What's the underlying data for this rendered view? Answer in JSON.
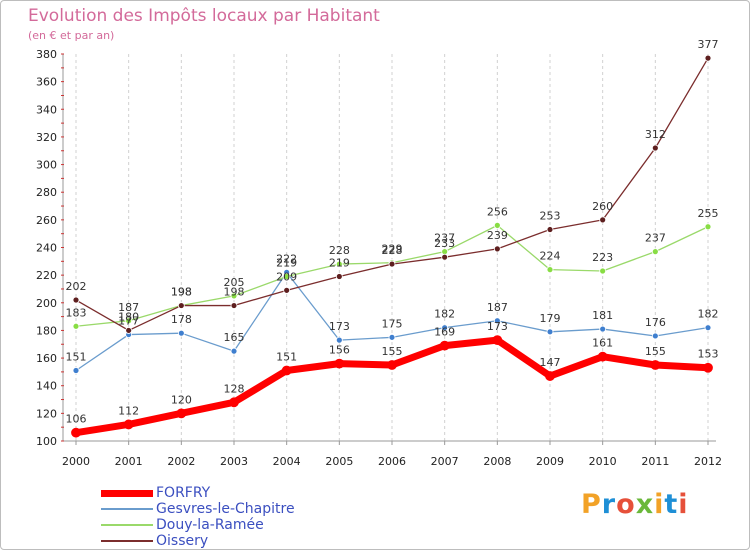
{
  "title": "Evolution des Impôts locaux par Habitant",
  "subtitle": "(en € et par an)",
  "logo": {
    "text": "Proxiti",
    "colors": [
      "#f2a227",
      "#1e8fd6",
      "#e6503a",
      "#6ab83a",
      "#f2a227",
      "#1e8fd6",
      "#e6503a"
    ]
  },
  "chart_data": {
    "type": "line",
    "title": "Evolution des Impôts locaux par Habitant",
    "subtitle": "(en € et par an)",
    "xlabel": "",
    "ylabel": "",
    "ylim": [
      100,
      380
    ],
    "yticks": [
      100,
      120,
      140,
      160,
      180,
      200,
      220,
      240,
      260,
      280,
      300,
      320,
      340,
      360,
      380
    ],
    "grid": "vertical dashed",
    "x": [
      "2000",
      "2001",
      "2002",
      "2003",
      "2004",
      "2005",
      "2006",
      "2007",
      "2008",
      "2009",
      "2010",
      "2011",
      "2012"
    ],
    "legend_position": "bottom-left",
    "series": [
      {
        "name": "FORFRY",
        "color": "#ff0000",
        "marker": "#ff0000",
        "width": 7,
        "values": [
          106,
          112,
          120,
          128,
          151,
          156,
          155,
          169,
          173,
          147,
          161,
          155,
          153
        ]
      },
      {
        "name": "Gesvres-le-Chapitre",
        "color": "#6a9ccd",
        "marker": "#3f7fcf",
        "width": 1.3,
        "values": [
          151,
          177,
          178,
          165,
          222,
          173,
          175,
          182,
          187,
          179,
          181,
          176,
          182
        ]
      },
      {
        "name": "Douy-la-Ramée",
        "color": "#9ad96a",
        "marker": "#88dd44",
        "width": 1.3,
        "values": [
          183,
          187,
          198,
          205,
          219,
          228,
          229,
          237,
          256,
          224,
          223,
          237,
          255
        ]
      },
      {
        "name": "Oissery",
        "color": "#7b2d2d",
        "marker": "#5e1f1f",
        "width": 1.3,
        "values": [
          202,
          180,
          198,
          198,
          209,
          219,
          228,
          233,
          239,
          253,
          260,
          312,
          377
        ]
      }
    ]
  }
}
